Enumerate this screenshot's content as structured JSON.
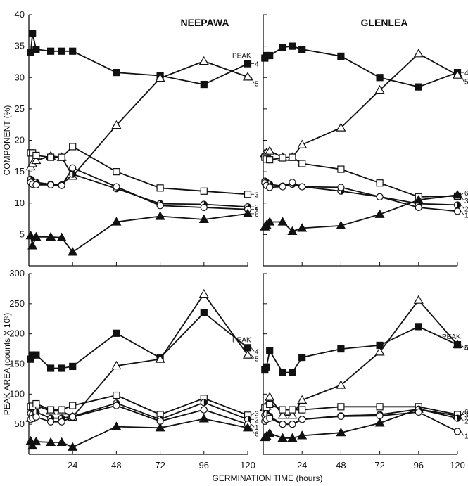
{
  "chart_data": [
    {
      "type": "line",
      "title": "NEEPAWA",
      "xlabel": "",
      "ylabel": "COMPONENT (%)",
      "xlim": [
        0,
        120
      ],
      "ylim": [
        0,
        40
      ],
      "xticks": [],
      "yticks": [
        5,
        10,
        15,
        20,
        25,
        30,
        35,
        40
      ],
      "peak_header": "PEAK",
      "series": [
        {
          "name": "4",
          "marker": "square-filled",
          "x": [
            1,
            2,
            4,
            12,
            18,
            24,
            48,
            72,
            96,
            120
          ],
          "values": [
            34,
            37,
            34.5,
            34.2,
            34.2,
            34.2,
            30.8,
            30.3,
            28.9,
            32.2
          ]
        },
        {
          "name": "5",
          "marker": "triangle-open",
          "x": [
            1,
            2,
            4,
            12,
            18,
            24,
            48,
            72,
            96,
            120
          ],
          "values": [
            15.8,
            16.3,
            16.8,
            17.5,
            17.3,
            14.3,
            22.4,
            29.9,
            32.6,
            30.1
          ]
        },
        {
          "name": "3",
          "marker": "square-open",
          "x": [
            1,
            2,
            4,
            12,
            18,
            24,
            48,
            72,
            96,
            120
          ],
          "values": [
            18,
            18,
            17.6,
            17.3,
            17.3,
            19,
            15,
            12.4,
            11.9,
            11.4
          ]
        },
        {
          "name": "2",
          "marker": "circle-half",
          "x": [
            1,
            2,
            4,
            12,
            18,
            24,
            48,
            72,
            96,
            120
          ],
          "values": [
            13.8,
            13.5,
            13.3,
            13,
            12.9,
            14.6,
            12.3,
            9.9,
            9.8,
            9.4
          ]
        },
        {
          "name": "1",
          "marker": "circle-open",
          "x": [
            1,
            2,
            4,
            12,
            18,
            24,
            48,
            72,
            96,
            120
          ],
          "values": [
            13.3,
            13,
            12.9,
            12.9,
            12.8,
            15.6,
            12.6,
            9.6,
            9.3,
            9
          ]
        },
        {
          "name": "6",
          "marker": "triangle-filled",
          "x": [
            1,
            2,
            4,
            12,
            18,
            24,
            48,
            72,
            96,
            120
          ],
          "values": [
            4.8,
            3.2,
            4.6,
            4.6,
            4.5,
            2.2,
            7,
            7.9,
            7.4,
            8.3
          ]
        }
      ]
    },
    {
      "type": "line",
      "title": "GLENLEA",
      "xlabel": "",
      "ylabel": "",
      "xlim": [
        0,
        120
      ],
      "ylim": [
        0,
        40
      ],
      "xticks": [],
      "yticks": [],
      "peak_header": "",
      "series": [
        {
          "name": "4",
          "marker": "square-filled",
          "x": [
            1,
            2,
            4,
            12,
            18,
            24,
            48,
            72,
            96,
            120
          ],
          "values": [
            33.1,
            33.5,
            33.5,
            34.8,
            35,
            34.5,
            33.4,
            30,
            28.5,
            30.8
          ]
        },
        {
          "name": "5",
          "marker": "triangle-open",
          "x": [
            1,
            2,
            4,
            12,
            18,
            24,
            48,
            72,
            96,
            120
          ],
          "values": [
            17.9,
            18,
            18.3,
            17.3,
            17.3,
            19.3,
            22,
            28,
            33.8,
            30.4
          ]
        },
        {
          "name": "3",
          "marker": "square-open",
          "x": [
            1,
            2,
            4,
            12,
            18,
            24,
            48,
            72,
            96,
            120
          ],
          "values": [
            17.3,
            17,
            16.9,
            17.2,
            17.3,
            16.3,
            15.4,
            13.2,
            11,
            11.1
          ]
        },
        {
          "name": "2",
          "marker": "circle-half",
          "x": [
            1,
            2,
            4,
            12,
            18,
            24,
            48,
            72,
            96,
            120
          ],
          "values": [
            13.5,
            13.3,
            13,
            12.7,
            13,
            12.6,
            11.9,
            11,
            9.9,
            9.7
          ]
        },
        {
          "name": "1",
          "marker": "circle-open",
          "x": [
            1,
            2,
            4,
            12,
            18,
            24,
            48,
            72,
            96,
            120
          ],
          "values": [
            13.2,
            12.8,
            12.5,
            12.6,
            13.3,
            12.6,
            12.5,
            11,
            9.3,
            8.7
          ]
        },
        {
          "name": "6",
          "marker": "triangle-filled",
          "x": [
            1,
            2,
            4,
            12,
            18,
            24,
            48,
            72,
            96,
            120
          ],
          "values": [
            6.2,
            6.5,
            7,
            7,
            5.5,
            6,
            6.4,
            8.2,
            10.5,
            11.3
          ]
        }
      ]
    },
    {
      "type": "line",
      "title": "",
      "xlabel": "",
      "ylabel": "PEAK AREA (counts X 10³)",
      "xlim": [
        0,
        120
      ],
      "ylim": [
        0,
        300
      ],
      "xticks": [
        24,
        48,
        72,
        96,
        120
      ],
      "yticks": [
        50,
        100,
        150,
        200,
        250,
        300
      ],
      "peak_header": "PEAK",
      "series": [
        {
          "name": "4",
          "marker": "square-filled",
          "x": [
            1,
            2,
            4,
            12,
            18,
            24,
            48,
            72,
            96,
            120
          ],
          "values": [
            158,
            165,
            165,
            143,
            143,
            146,
            201,
            160,
            235,
            177
          ]
        },
        {
          "name": "5",
          "marker": "triangle-open",
          "x": [
            1,
            2,
            4,
            12,
            18,
            24,
            48,
            72,
            96,
            120
          ],
          "values": [
            60,
            75,
            81,
            72,
            72,
            62,
            147,
            158,
            266,
            165
          ]
        },
        {
          "name": "3",
          "marker": "square-open",
          "x": [
            1,
            2,
            4,
            12,
            18,
            24,
            48,
            72,
            96,
            120
          ],
          "values": [
            79,
            80,
            84,
            74,
            74,
            81,
            98,
            66,
            93,
            65
          ]
        },
        {
          "name": "2",
          "marker": "circle-half",
          "x": [
            1,
            2,
            4,
            12,
            18,
            24,
            48,
            72,
            96,
            120
          ],
          "values": [
            68,
            66,
            70,
            60,
            60,
            63,
            85,
            58,
            86,
            58
          ]
        },
        {
          "name": "1",
          "marker": "circle-open",
          "x": [
            1,
            2,
            4,
            12,
            18,
            24,
            48,
            72,
            96,
            120
          ],
          "values": [
            58,
            60,
            62,
            54,
            54,
            62,
            81,
            55,
            74,
            50
          ]
        },
        {
          "name": "6",
          "marker": "triangle-filled",
          "x": [
            1,
            2,
            4,
            12,
            18,
            24,
            48,
            72,
            96,
            120
          ],
          "values": [
            22,
            14,
            21,
            20,
            20,
            12,
            46,
            44,
            59,
            44
          ]
        }
      ]
    },
    {
      "type": "line",
      "title": "",
      "xlabel": "",
      "ylabel": "",
      "xlim": [
        0,
        120
      ],
      "ylim": [
        0,
        300
      ],
      "xticks": [
        24,
        48,
        72,
        96,
        120
      ],
      "yticks": [],
      "peak_header": "PEAK",
      "series": [
        {
          "name": "5",
          "marker": "triangle-open",
          "x": [
            1,
            2,
            4,
            12,
            18,
            24,
            48,
            72,
            96,
            120
          ],
          "values": [
            78,
            80,
            95,
            65,
            65,
            90,
            115,
            170,
            256,
            182
          ]
        },
        {
          "name": "4",
          "marker": "square-filled",
          "x": [
            1,
            2,
            4,
            12,
            18,
            24,
            48,
            72,
            96,
            120
          ],
          "values": [
            140,
            145,
            172,
            136,
            136,
            161,
            175,
            181,
            212,
            182
          ]
        },
        {
          "name": "6",
          "marker": "triangle-filled",
          "x": [
            1,
            2,
            4,
            12,
            18,
            24,
            48,
            72,
            96,
            120
          ],
          "values": [
            28,
            30,
            35,
            27,
            27,
            31,
            36,
            52,
            75,
            64
          ]
        },
        {
          "name": "3",
          "marker": "square-open",
          "x": [
            1,
            2,
            4,
            12,
            18,
            24,
            48,
            72,
            96,
            120
          ],
          "values": [
            77,
            78,
            83,
            74,
            74,
            74,
            79,
            79,
            79,
            66
          ]
        },
        {
          "name": "2",
          "marker": "circle-half",
          "x": [
            1,
            2,
            4,
            12,
            18,
            24,
            48,
            72,
            96,
            120
          ],
          "values": [
            65,
            67,
            63,
            50,
            50,
            58,
            64,
            66,
            75,
            60
          ]
        },
        {
          "name": "1",
          "marker": "circle-open",
          "x": [
            1,
            2,
            4,
            12,
            18,
            24,
            48,
            72,
            96,
            120
          ],
          "values": [
            55,
            58,
            60,
            50,
            50,
            58,
            63,
            64,
            70,
            38
          ]
        }
      ]
    }
  ],
  "x_axis_title": "GERMINATION TIME (hours)"
}
